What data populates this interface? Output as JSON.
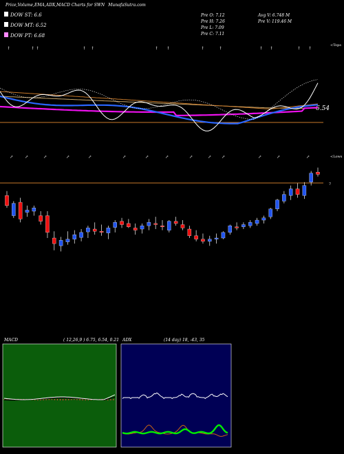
{
  "header": {
    "title": "Price,Volume,EMA,ADX,MACD Charts for SWN",
    "site": "MunafaSutra.com"
  },
  "dow": [
    {
      "label": "DOW ST: 6.6",
      "color": "#ffffff"
    },
    {
      "label": "DOW MT: 6.52",
      "color": "#ffffff"
    },
    {
      "label": "DOW PT: 6.68",
      "color": "#ff88ff"
    }
  ],
  "prev": {
    "open": "Pre  O: 7.12",
    "high": "Pre  H: 7.26",
    "low": "Pre  L: 7.09",
    "close": "Pre  C: 7.11"
  },
  "avg": {
    "avg_vol": "Avg V: 6.748  M",
    "pre_vol": "Pre  V: 119.46  M"
  },
  "markers": {
    "tops": "<Tops",
    "lows": "<Lows"
  },
  "ema_value": "6.54",
  "price_mark": "7",
  "macd": {
    "label": "MACD",
    "params": "( 12,26,9 ) 6.75, 6.54, 0.21"
  },
  "adx": {
    "label": "ADX",
    "params": "(14  day) 18, -43, 35"
  },
  "colors": {
    "up": "#2255ee",
    "down": "#ee1111",
    "wick": "#ffffff",
    "ema_blue": "#2a66ff",
    "ema_magenta": "#ee11ee",
    "ema_orange": "#c97a2a",
    "ema_tan": "#caa76a",
    "price_line": "#ffffff",
    "macd_bg": "#0b5d0b",
    "adx_bg": "#000055",
    "dip": "#00ee00",
    "dim": "#cc6611"
  },
  "chart_data": [
    {
      "type": "candlestick",
      "title": "SWN",
      "ohlc": [
        [
          7.38,
          7.46,
          7.16,
          7.2
        ],
        [
          7.02,
          7.28,
          6.98,
          7.24
        ],
        [
          7.26,
          7.34,
          6.9,
          6.96
        ],
        [
          7.08,
          7.2,
          7.0,
          7.12
        ],
        [
          7.1,
          7.2,
          7.02,
          7.16
        ],
        [
          7.02,
          7.1,
          6.86,
          6.92
        ],
        [
          7.02,
          7.1,
          6.62,
          6.72
        ],
        [
          6.62,
          6.74,
          6.4,
          6.52
        ],
        [
          6.48,
          6.64,
          6.38,
          6.58
        ],
        [
          6.55,
          6.74,
          6.5,
          6.6
        ],
        [
          6.6,
          6.76,
          6.52,
          6.68
        ],
        [
          6.63,
          6.78,
          6.56,
          6.72
        ],
        [
          6.73,
          6.84,
          6.62,
          6.8
        ],
        [
          6.78,
          6.9,
          6.68,
          6.74
        ],
        [
          6.74,
          6.86,
          6.66,
          6.72
        ],
        [
          6.71,
          6.84,
          6.6,
          6.8
        ],
        [
          6.81,
          6.94,
          6.72,
          6.9
        ],
        [
          6.92,
          6.98,
          6.8,
          6.86
        ],
        [
          6.88,
          6.96,
          6.8,
          6.82
        ],
        [
          6.8,
          6.88,
          6.68,
          6.76
        ],
        [
          6.78,
          6.88,
          6.7,
          6.84
        ],
        [
          6.84,
          6.96,
          6.76,
          6.9
        ],
        [
          6.88,
          7.0,
          6.78,
          6.86
        ],
        [
          6.84,
          6.94,
          6.76,
          6.82
        ],
        [
          6.76,
          6.94,
          6.72,
          6.92
        ],
        [
          6.92,
          7.0,
          6.84,
          6.88
        ],
        [
          6.86,
          6.94,
          6.76,
          6.8
        ],
        [
          6.78,
          6.84,
          6.62,
          6.66
        ],
        [
          6.66,
          6.76,
          6.56,
          6.6
        ],
        [
          6.6,
          6.7,
          6.52,
          6.56
        ],
        [
          6.56,
          6.66,
          6.48,
          6.6
        ],
        [
          6.6,
          6.7,
          6.52,
          6.62
        ],
        [
          6.62,
          6.74,
          6.6,
          6.72
        ],
        [
          6.72,
          6.86,
          6.68,
          6.84
        ],
        [
          6.82,
          6.9,
          6.76,
          6.8
        ],
        [
          6.82,
          6.9,
          6.78,
          6.86
        ],
        [
          6.84,
          6.94,
          6.8,
          6.9
        ],
        [
          6.88,
          6.98,
          6.84,
          6.94
        ],
        [
          6.94,
          7.02,
          6.88,
          6.98
        ],
        [
          7.0,
          7.16,
          6.96,
          7.14
        ],
        [
          7.14,
          7.32,
          7.1,
          7.3
        ],
        [
          7.28,
          7.46,
          7.24,
          7.4
        ],
        [
          7.38,
          7.56,
          7.3,
          7.5
        ],
        [
          7.5,
          7.6,
          7.34,
          7.4
        ],
        [
          7.38,
          7.62,
          7.32,
          7.56
        ],
        [
          7.62,
          7.82,
          7.56,
          7.78
        ],
        [
          7.8,
          7.88,
          7.72,
          7.76
        ]
      ]
    },
    {
      "type": "line",
      "title": "MACD",
      "values": [
        6.75,
        6.54,
        0.21
      ]
    },
    {
      "type": "line",
      "title": "ADX",
      "values": [
        18,
        -43,
        35
      ]
    }
  ]
}
